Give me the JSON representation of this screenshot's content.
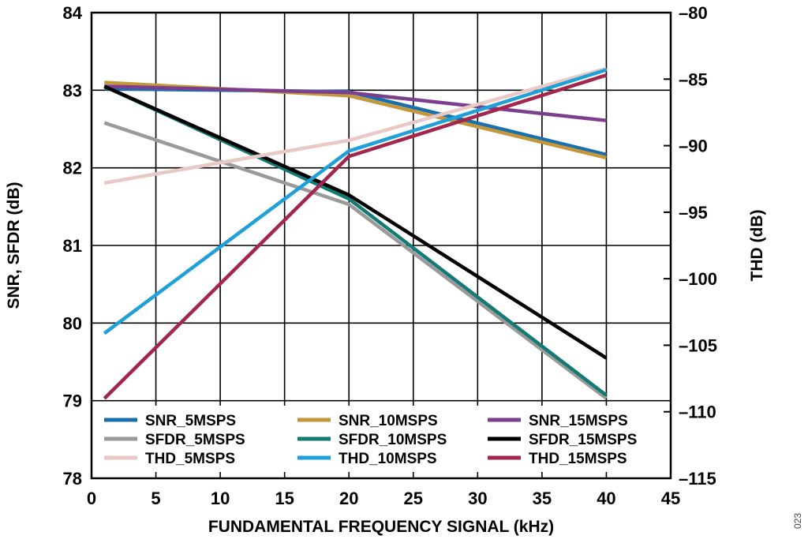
{
  "chart_data": {
    "type": "line",
    "xlabel": "FUNDAMENTAL FREQUENCY SIGNAL (kHz)",
    "ylabel": "SNR, SFDR (dB)",
    "y2label": "THD (dB)",
    "xlim": [
      0,
      45
    ],
    "ylim": [
      78,
      84
    ],
    "y2lim": [
      -115,
      -80
    ],
    "xticks": [
      "0",
      "5",
      "10",
      "15",
      "20",
      "25",
      "30",
      "35",
      "40",
      "45"
    ],
    "yticks": [
      "78",
      "79",
      "80",
      "81",
      "82",
      "83",
      "84"
    ],
    "y2ticks": [
      "–115",
      "–110",
      "–105",
      "–100",
      "–95",
      "–90",
      "–85",
      "–80"
    ],
    "grid": true,
    "legend_position": "bottom, inside plot, 3 columns",
    "figure_id": "023",
    "series": [
      {
        "name": "SNR_5MSPS",
        "axis": "left",
        "color": "#1a6faf",
        "x": [
          1,
          20,
          40
        ],
        "y": [
          83.02,
          82.98,
          82.17
        ]
      },
      {
        "name": "SNR_10MSPS",
        "axis": "left",
        "color": "#c4973a",
        "x": [
          1,
          20,
          40
        ],
        "y": [
          83.1,
          82.93,
          82.13
        ]
      },
      {
        "name": "SNR_15MSPS",
        "axis": "left",
        "color": "#7b3f8e",
        "x": [
          1,
          20,
          40
        ],
        "y": [
          83.05,
          82.97,
          82.61
        ]
      },
      {
        "name": "SFDR_5MSPS",
        "axis": "left",
        "color": "#9a9a9a",
        "x": [
          1,
          20,
          40
        ],
        "y": [
          82.58,
          81.53,
          79.03
        ]
      },
      {
        "name": "SFDR_10MSPS",
        "axis": "left",
        "color": "#137a74",
        "x": [
          1,
          20,
          40
        ],
        "y": [
          83.05,
          81.6,
          79.07
        ]
      },
      {
        "name": "SFDR_15MSPS",
        "axis": "left",
        "color": "#000000",
        "x": [
          1,
          20,
          40
        ],
        "y": [
          83.05,
          81.65,
          79.55
        ]
      },
      {
        "name": "THD_5MSPS",
        "axis": "right",
        "color": "#e8c9c6",
        "x": [
          1,
          20,
          40
        ],
        "y": [
          -92.8,
          -89.6,
          -84.2
        ]
      },
      {
        "name": "THD_10MSPS",
        "axis": "right",
        "color": "#1fa0d8",
        "x": [
          1,
          20,
          40
        ],
        "y": [
          -104.1,
          -90.4,
          -84.3
        ]
      },
      {
        "name": "THD_15MSPS",
        "axis": "right",
        "color": "#a3264f",
        "x": [
          1,
          20,
          40
        ],
        "y": [
          -109.0,
          -90.8,
          -84.7
        ]
      }
    ]
  }
}
